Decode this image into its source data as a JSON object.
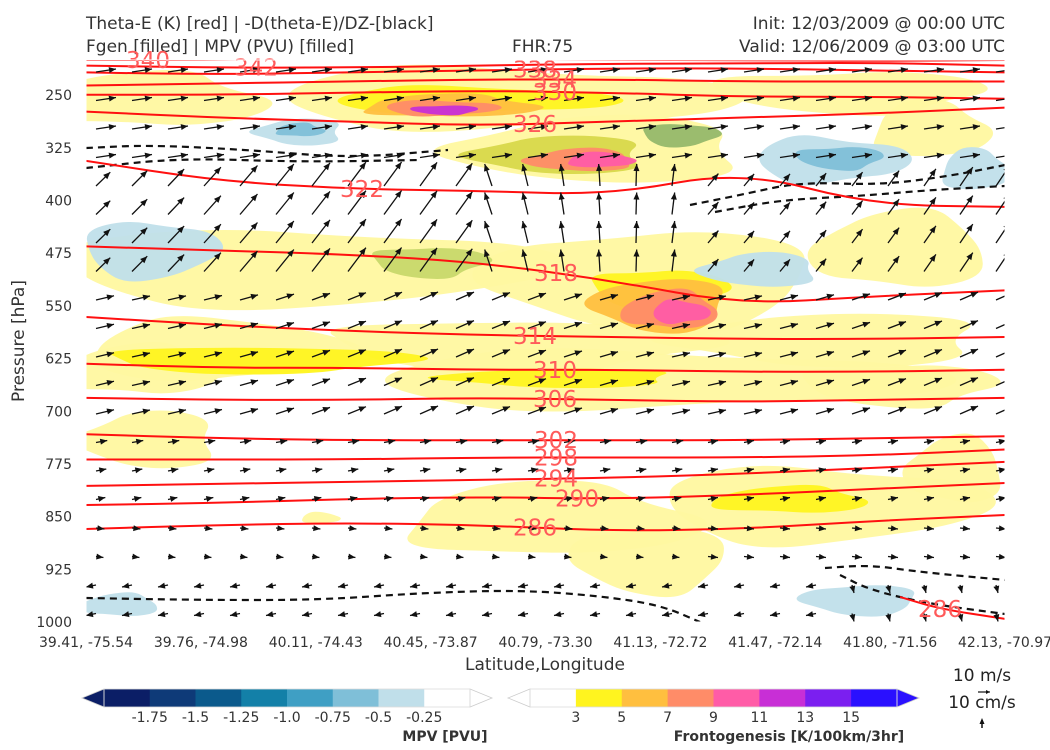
{
  "header": {
    "title_left_1": "Theta-E (K) [red] | -D(theta-E)/DZ-[black]",
    "title_left_2": "Fgen [filled] | MPV (PVU) [filled]",
    "title_center": "FHR:75",
    "title_right_1": "Init: 12/03/2009 @ 00:00 UTC",
    "title_right_2": "Valid: 12/06/2009 @ 03:00 UTC"
  },
  "chart_data": {
    "type": "cross-section",
    "xlabel": "Latitude,Longitude",
    "ylabel": "Pressure [hPa]",
    "ylim": [
      1000,
      200
    ],
    "y_ticks": [
      250,
      325,
      400,
      475,
      550,
      625,
      700,
      775,
      850,
      925,
      1000
    ],
    "x_tick_labels": [
      "39.41, -75.54",
      "39.76, -74.98",
      "40.11, -74.43",
      "40.45, -73.87",
      "40.79, -73.30",
      "41.13, -72.72",
      "41.47, -72.14",
      "41.80, -71.56",
      "42.13, -70.97"
    ],
    "theta_e_contours": [
      {
        "label": "340",
        "p": 200
      },
      {
        "label": "342",
        "p": 208
      },
      {
        "label": "338",
        "p": 212
      },
      {
        "label": "334",
        "p": 222
      },
      {
        "label": "330",
        "p": 238
      },
      {
        "label": "326",
        "p": 282
      },
      {
        "label": "322",
        "p": 392
      },
      {
        "label": "318",
        "p": 528
      },
      {
        "label": "314",
        "p": 600
      },
      {
        "label": "310",
        "p": 641
      },
      {
        "label": "306",
        "p": 681
      },
      {
        "label": "302",
        "p": 727
      },
      {
        "label": "298",
        "p": 763
      },
      {
        "label": "294",
        "p": 792
      },
      {
        "label": "290",
        "p": 822
      },
      {
        "label": "286",
        "p": 862
      },
      {
        "label": "286",
        "p": 970
      }
    ],
    "frontogenesis_colorbar": {
      "label": "Frontogenesis [K/100km/3hr]",
      "ticks": [
        "3",
        "5",
        "7",
        "9",
        "11",
        "13",
        "15"
      ],
      "colors": [
        "#ffffff",
        "#fff41f",
        "#ffbf3f",
        "#ff8c68",
        "#ff5ca7",
        "#c82fd6",
        "#7b1ff0",
        "#2a10ff"
      ]
    },
    "mpv_colorbar": {
      "label": "MPV [PVU]",
      "ticks": [
        "-1.75",
        "-1.5",
        "-1.25",
        "-1.0",
        "-0.75",
        "-0.5",
        "-0.25"
      ],
      "colors": [
        "#0b1e66",
        "#0e3a78",
        "#0b5a8c",
        "#1380a8",
        "#3f9fc4",
        "#7fbfd8",
        "#c0dfea",
        "#ffffff"
      ]
    },
    "wind_key": {
      "horizontal": "10 m/s",
      "vertical": "10 cm/s"
    }
  }
}
